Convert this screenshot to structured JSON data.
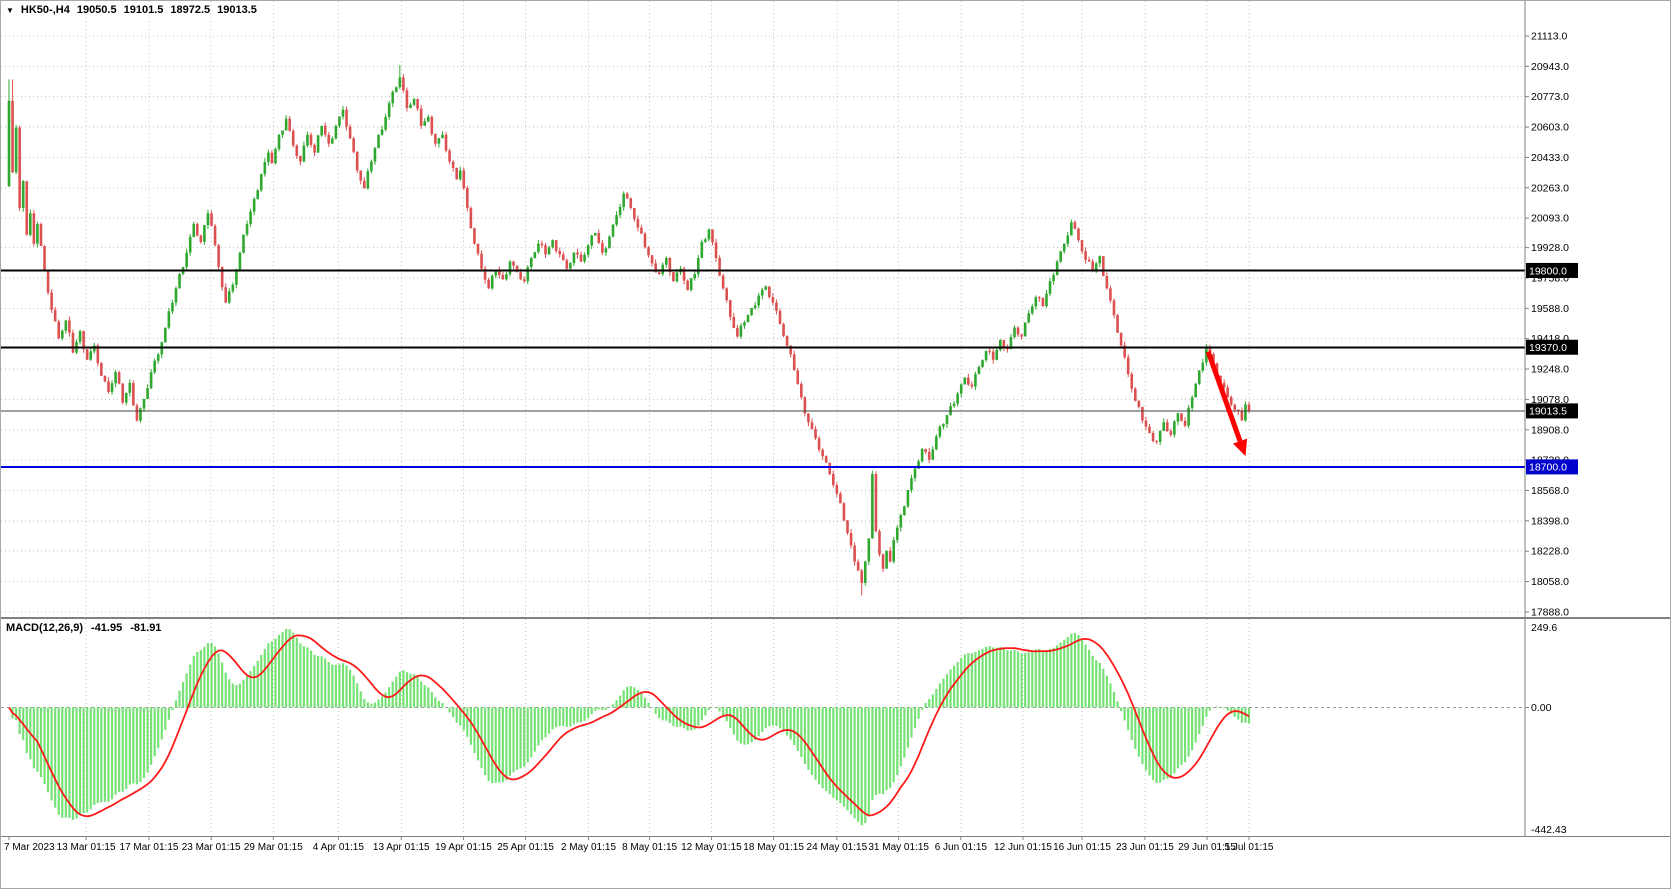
{
  "window": {
    "collapse_icon": "▼",
    "title": "HK50-,H4",
    "open": "19050.5",
    "high": "19101.5",
    "low": "18972.5",
    "close": "19013.5"
  },
  "macd_header": {
    "label": "MACD(12,26,9)",
    "main_value": "-41.95",
    "signal_value": "-81.91"
  },
  "colors": {
    "background": "#ffffff",
    "grid": "#c2c2c2",
    "bull": "#2fa82f",
    "bear": "#dd5050",
    "macd_hist": "#76e276",
    "macd_signal": "#ff1a1a",
    "arrow": "#ff0000",
    "axis_text": "#000000",
    "separator": "#808080"
  },
  "chart_data": {
    "type": "candlestick",
    "symbol": "HK50-",
    "timeframe": "H4",
    "title": "HK50-,H4 19050.5 19101.5 18972.5 19013.5",
    "last_bar": {
      "open": 19050.5,
      "high": 19101.5,
      "low": 18972.5,
      "close": 19013.5
    },
    "price_axis_ticks": [
      "21113.0",
      "20943.0",
      "20773.0",
      "20603.0",
      "20433.0",
      "20263.0",
      "20093.0",
      "19928.0",
      "19758.0",
      "19588.0",
      "19418.0",
      "19248.0",
      "19078.0",
      "18908.0",
      "18738.0",
      "18568.0",
      "18398.0",
      "18228.0",
      "18058.0",
      "17888.0"
    ],
    "macd_axis": {
      "top": "249.6",
      "zero": "0.00",
      "bottom": "-442.43"
    },
    "macd_params": {
      "fast": 12,
      "slow": 26,
      "signal": 9,
      "last_main": -41.95,
      "last_signal": -81.91
    },
    "levels": [
      {
        "label": "19800.0",
        "price": 19800,
        "line_color": "#000000",
        "badge_color": "#000000",
        "thickness": 2
      },
      {
        "label": "19370.0",
        "price": 19370,
        "line_color": "#000000",
        "badge_color": "#000000",
        "thickness": 2
      },
      {
        "label": "19013.5",
        "price": 19013.5,
        "line_color": "#404040",
        "badge_color": "#000000",
        "thickness": 1
      },
      {
        "label": "18700.0",
        "price": 18700,
        "line_color": "#0000e0",
        "badge_color": "#0000cd",
        "thickness": 2
      }
    ],
    "time_ticks": [
      {
        "label": "7 Mar 2023",
        "i": 0
      },
      {
        "label": "13 Mar 01:15",
        "i": 21.7
      },
      {
        "label": "17 Mar 01:15",
        "i": 39.4
      },
      {
        "label": "23 Mar 01:15",
        "i": 56.9
      },
      {
        "label": "29 Mar 01:15",
        "i": 74.4
      },
      {
        "label": "4 Apr 01:15",
        "i": 92.7
      },
      {
        "label": "13 Apr 01:15",
        "i": 110.4
      },
      {
        "label": "19 Apr 01:15",
        "i": 127.9
      },
      {
        "label": "25 Apr 01:15",
        "i": 145.4
      },
      {
        "label": "2 May 01:15",
        "i": 163.1
      },
      {
        "label": "8 May 01:15",
        "i": 180.3
      },
      {
        "label": "12 May 01:15",
        "i": 197.7
      },
      {
        "label": "18 May 01:15",
        "i": 215.2
      },
      {
        "label": "24 May 01:15",
        "i": 233
      },
      {
        "label": "31 May 01:15",
        "i": 250.4
      },
      {
        "label": "6 Jun 01:15",
        "i": 267.9
      },
      {
        "label": "12 Jun 01:15",
        "i": 285.4
      },
      {
        "label": "16 Jun 01:15",
        "i": 302
      },
      {
        "label": "23 Jun 01:15",
        "i": 319.7
      },
      {
        "label": "29 Jun 01:15",
        "i": 337.2
      },
      {
        "label": "5 Jul 01:15",
        "i": 349
      }
    ],
    "encoding_note": "price_path = [bar_index, close] waypoints read from the chart; intermediate H4 bars, OHLC wicks and MACD(12,26,9) main/signal are derived from this series.",
    "price_path": [
      [
        0,
        20750
      ],
      [
        1,
        20350
      ],
      [
        2,
        20600
      ],
      [
        3,
        20150
      ],
      [
        4,
        20300
      ],
      [
        5,
        20000
      ],
      [
        6,
        20120
      ],
      [
        7,
        19950
      ],
      [
        8,
        20060
      ],
      [
        10,
        19800
      ],
      [
        12,
        19580
      ],
      [
        14,
        19420
      ],
      [
        16,
        19520
      ],
      [
        18,
        19340
      ],
      [
        20,
        19460
      ],
      [
        22,
        19300
      ],
      [
        24,
        19380
      ],
      [
        26,
        19210
      ],
      [
        28,
        19120
      ],
      [
        30,
        19230
      ],
      [
        32,
        19060
      ],
      [
        34,
        19170
      ],
      [
        36,
        18960
      ],
      [
        38,
        19080
      ],
      [
        40,
        19230
      ],
      [
        42,
        19330
      ],
      [
        44,
        19480
      ],
      [
        46,
        19620
      ],
      [
        48,
        19780
      ],
      [
        50,
        19900
      ],
      [
        52,
        20060
      ],
      [
        54,
        19960
      ],
      [
        56,
        20120
      ],
      [
        57,
        20050
      ],
      [
        59,
        19820
      ],
      [
        61,
        19620
      ],
      [
        63,
        19720
      ],
      [
        65,
        19900
      ],
      [
        67,
        20060
      ],
      [
        69,
        20200
      ],
      [
        71,
        20340
      ],
      [
        73,
        20460
      ],
      [
        74,
        20400
      ],
      [
        76,
        20560
      ],
      [
        78,
        20650
      ],
      [
        80,
        20500
      ],
      [
        82,
        20410
      ],
      [
        84,
        20560
      ],
      [
        86,
        20460
      ],
      [
        88,
        20610
      ],
      [
        90,
        20510
      ],
      [
        92,
        20610
      ],
      [
        94,
        20700
      ],
      [
        96,
        20540
      ],
      [
        98,
        20360
      ],
      [
        100,
        20260
      ],
      [
        102,
        20410
      ],
      [
        104,
        20560
      ],
      [
        106,
        20660
      ],
      [
        108,
        20800
      ],
      [
        110,
        20880
      ],
      [
        112,
        20710
      ],
      [
        114,
        20760
      ],
      [
        116,
        20610
      ],
      [
        118,
        20660
      ],
      [
        120,
        20510
      ],
      [
        122,
        20560
      ],
      [
        124,
        20410
      ],
      [
        126,
        20310
      ],
      [
        127,
        20360
      ],
      [
        129,
        20150
      ],
      [
        131,
        19950
      ],
      [
        133,
        19810
      ],
      [
        135,
        19700
      ],
      [
        137,
        19800
      ],
      [
        139,
        19750
      ],
      [
        141,
        19850
      ],
      [
        143,
        19790
      ],
      [
        145,
        19740
      ],
      [
        147,
        19870
      ],
      [
        149,
        19950
      ],
      [
        151,
        19890
      ],
      [
        153,
        19970
      ],
      [
        155,
        19890
      ],
      [
        157,
        19810
      ],
      [
        159,
        19900
      ],
      [
        161,
        19850
      ],
      [
        163,
        19940
      ],
      [
        165,
        20010
      ],
      [
        167,
        19900
      ],
      [
        169,
        19990
      ],
      [
        171,
        20110
      ],
      [
        173,
        20230
      ],
      [
        175,
        20150
      ],
      [
        177,
        20040
      ],
      [
        179,
        19930
      ],
      [
        181,
        19840
      ],
      [
        183,
        19780
      ],
      [
        185,
        19870
      ],
      [
        187,
        19740
      ],
      [
        189,
        19810
      ],
      [
        191,
        19690
      ],
      [
        193,
        19780
      ],
      [
        195,
        19960
      ],
      [
        197,
        20030
      ],
      [
        199,
        19870
      ],
      [
        201,
        19700
      ],
      [
        203,
        19540
      ],
      [
        205,
        19430
      ],
      [
        207,
        19510
      ],
      [
        209,
        19590
      ],
      [
        211,
        19660
      ],
      [
        213,
        19710
      ],
      [
        215,
        19620
      ],
      [
        217,
        19500
      ],
      [
        219,
        19380
      ],
      [
        221,
        19240
      ],
      [
        223,
        19090
      ],
      [
        225,
        18950
      ],
      [
        227,
        18860
      ],
      [
        229,
        18760
      ],
      [
        231,
        18660
      ],
      [
        233,
        18550
      ],
      [
        235,
        18400
      ],
      [
        237,
        18260
      ],
      [
        239,
        18120
      ],
      [
        240,
        18050
      ],
      [
        241,
        18170
      ],
      [
        242,
        18300
      ],
      [
        243,
        18660
      ],
      [
        244,
        18340
      ],
      [
        245,
        18210
      ],
      [
        246,
        18130
      ],
      [
        247,
        18230
      ],
      [
        248,
        18170
      ],
      [
        249,
        18290
      ],
      [
        251,
        18430
      ],
      [
        253,
        18570
      ],
      [
        255,
        18690
      ],
      [
        257,
        18800
      ],
      [
        259,
        18740
      ],
      [
        261,
        18870
      ],
      [
        263,
        18940
      ],
      [
        265,
        19040
      ],
      [
        267,
        19110
      ],
      [
        269,
        19200
      ],
      [
        271,
        19150
      ],
      [
        273,
        19260
      ],
      [
        275,
        19350
      ],
      [
        277,
        19300
      ],
      [
        279,
        19410
      ],
      [
        281,
        19360
      ],
      [
        283,
        19480
      ],
      [
        285,
        19430
      ],
      [
        287,
        19560
      ],
      [
        289,
        19650
      ],
      [
        291,
        19600
      ],
      [
        293,
        19740
      ],
      [
        295,
        19850
      ],
      [
        297,
        19950
      ],
      [
        299,
        20070
      ],
      [
        301,
        19970
      ],
      [
        303,
        19860
      ],
      [
        305,
        19800
      ],
      [
        307,
        19880
      ],
      [
        309,
        19700
      ],
      [
        311,
        19550
      ],
      [
        313,
        19380
      ],
      [
        315,
        19220
      ],
      [
        317,
        19070
      ],
      [
        319,
        18960
      ],
      [
        321,
        18890
      ],
      [
        323,
        18840
      ],
      [
        325,
        18950
      ],
      [
        327,
        18880
      ],
      [
        329,
        19000
      ],
      [
        331,
        18930
      ],
      [
        333,
        19090
      ],
      [
        335,
        19240
      ],
      [
        337,
        19370
      ],
      [
        339,
        19280
      ],
      [
        341,
        19170
      ],
      [
        343,
        19090
      ],
      [
        345,
        19020
      ],
      [
        347,
        18960
      ],
      [
        348,
        19050
      ],
      [
        349,
        19013.5
      ]
    ],
    "annotations": {
      "arrow": {
        "shape": "down-right-arrow",
        "color": "#ff0000",
        "from_i": 337.5,
        "from_price": 19345,
        "to_i": 348,
        "to_price": 18760
      }
    }
  }
}
